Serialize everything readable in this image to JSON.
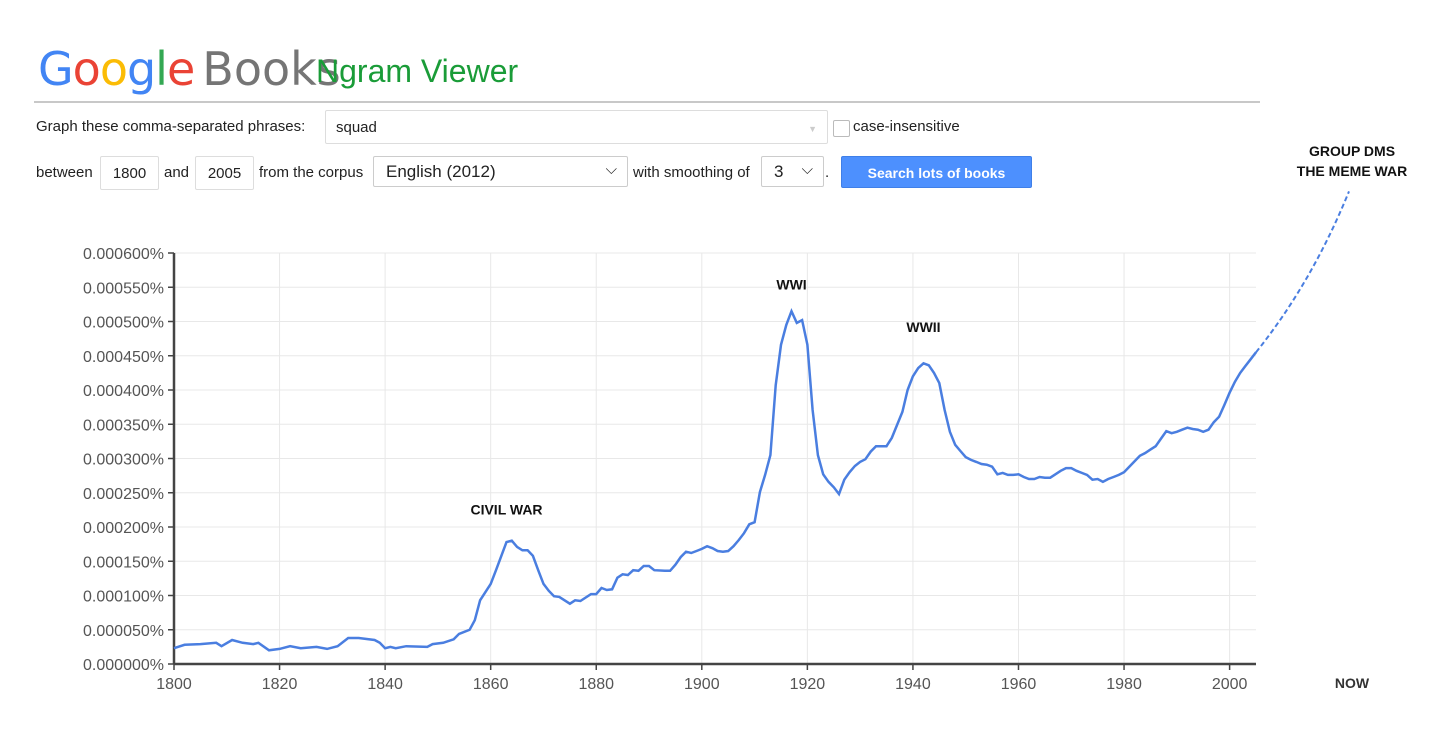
{
  "header": {
    "logo_google": "Google",
    "logo_books": "Books",
    "title": "Ngram Viewer",
    "logo_colors": [
      "#4285f4",
      "#ea4335",
      "#fbbc05",
      "#4285f4",
      "#34a853",
      "#ea4335"
    ],
    "title_color": "#1a9c38"
  },
  "controls": {
    "phrases_label": "Graph these comma-separated phrases:",
    "phrases_value": "squad",
    "case_insensitive_label": "case-insensitive",
    "case_insensitive_checked": false,
    "between_label": "between",
    "start_year": "1800",
    "and_label": "and",
    "end_year": "2005",
    "corpus_label": "from the corpus",
    "corpus_value": "English (2012)",
    "smoothing_label": "with smoothing of",
    "smoothing_value": "3",
    "period": ".",
    "search_button": "Search lots of books",
    "button_color": "#4d90fe"
  },
  "chart_data": {
    "type": "line",
    "y_unit": "percent",
    "xlim": [
      1800,
      2005
    ],
    "ylim": [
      0,
      0.0006
    ],
    "grid": true,
    "x_ticks": [
      "1800",
      "1820",
      "1840",
      "1860",
      "1880",
      "1900",
      "1920",
      "1940",
      "1960",
      "1980",
      "2000"
    ],
    "y_ticks": [
      "0.000000%",
      "0.000050%",
      "0.000100%",
      "0.000150%",
      "0.000200%",
      "0.000250%",
      "0.000300%",
      "0.000350%",
      "0.000400%",
      "0.000450%",
      "0.000500%",
      "0.000550%",
      "0.000600%"
    ],
    "series_color": "#4a7ee0",
    "series": [
      {
        "x": [
          1800,
          1802,
          1805,
          1808,
          1809,
          1811,
          1813,
          1815,
          1816,
          1818,
          1820,
          1822,
          1824,
          1827,
          1829,
          1831,
          1833,
          1835,
          1838,
          1839,
          1840,
          1841,
          1842,
          1844,
          1848,
          1849,
          1851,
          1853,
          1854,
          1856,
          1857,
          1858,
          1860,
          1861,
          1863,
          1864,
          1865,
          1866,
          1867,
          1868,
          1869,
          1870,
          1871,
          1872,
          1873,
          1875,
          1876,
          1877,
          1879,
          1880,
          1881,
          1882,
          1883,
          1884,
          1885,
          1886,
          1887,
          1888,
          1889,
          1890,
          1891,
          1893,
          1894,
          1895,
          1896,
          1897,
          1898,
          1899,
          1900,
          1901,
          1902,
          1903,
          1904,
          1905,
          1906,
          1907,
          1908,
          1909,
          1910,
          1911,
          1912,
          1913,
          1914,
          1915,
          1916,
          1917,
          1918,
          1919,
          1920,
          1921,
          1922,
          1923,
          1924,
          1925,
          1926,
          1927,
          1928,
          1929,
          1930,
          1931,
          1932,
          1933,
          1934,
          1935,
          1936,
          1937,
          1938,
          1939,
          1940,
          1941,
          1942,
          1943,
          1944,
          1945,
          1946,
          1947,
          1948,
          1949,
          1950,
          1951,
          1952,
          1953,
          1954,
          1955,
          1956,
          1957,
          1958,
          1959,
          1960,
          1961,
          1962,
          1963,
          1964,
          1965,
          1966,
          1967,
          1968,
          1969,
          1970,
          1971,
          1972,
          1973,
          1974,
          1975,
          1976,
          1977,
          1978,
          1979,
          1980,
          1981,
          1982,
          1983,
          1984,
          1985,
          1986,
          1987,
          1988,
          1989,
          1990,
          1991,
          1992,
          1993,
          1994,
          1995,
          1996,
          1997,
          1998,
          1999,
          2000,
          2001,
          2002,
          2003,
          2004,
          2005
        ],
        "y": [
          2.3e-05,
          2.8e-05,
          2.9e-05,
          3.1e-05,
          2.6e-05,
          3.5e-05,
          3.1e-05,
          2.9e-05,
          3.1e-05,
          2e-05,
          2.2e-05,
          2.6e-05,
          2.3e-05,
          2.5e-05,
          2.2e-05,
          2.6e-05,
          3.8e-05,
          3.8e-05,
          3.5e-05,
          3.1e-05,
          2.3e-05,
          2.5e-05,
          2.3e-05,
          2.6e-05,
          2.5e-05,
          2.9e-05,
          3.1e-05,
          3.6e-05,
          4.4e-05,
          5e-05,
          6.4e-05,
          9.3e-05,
          0.000117,
          0.000137,
          0.000178,
          0.00018,
          0.000171,
          0.000166,
          0.000166,
          0.000158,
          0.000137,
          0.000117,
          0.000107,
          9.9e-05,
          9.8e-05,
          8.8e-05,
          9.3e-05,
          9.2e-05,
          0.000102,
          0.000102,
          0.000111,
          0.000108,
          0.000109,
          0.000126,
          0.000131,
          0.00013,
          0.000137,
          0.000136,
          0.000143,
          0.000143,
          0.000137,
          0.000136,
          0.000136,
          0.000145,
          0.000156,
          0.000164,
          0.000162,
          0.000165,
          0.000168,
          0.000172,
          0.000169,
          0.000165,
          0.000164,
          0.000165,
          0.000172,
          0.000181,
          0.000191,
          0.000204,
          0.000207,
          0.000251,
          0.000276,
          0.000305,
          0.000407,
          0.000466,
          0.000495,
          0.000515,
          0.000498,
          0.000502,
          0.000466,
          0.000371,
          0.000305,
          0.000277,
          0.000266,
          0.000258,
          0.000248,
          0.000269,
          0.00028,
          0.000289,
          0.000295,
          0.000299,
          0.00031,
          0.000318,
          0.000318,
          0.000318,
          0.00033,
          0.000349,
          0.000368,
          0.0004,
          0.00042,
          0.000432,
          0.000439,
          0.000436,
          0.000425,
          0.00041,
          0.000371,
          0.000339,
          0.00032,
          0.000311,
          0.000302,
          0.000298,
          0.000295,
          0.000292,
          0.000291,
          0.000288,
          0.000277,
          0.000279,
          0.000276,
          0.000276,
          0.000277,
          0.000273,
          0.00027,
          0.00027,
          0.000273,
          0.000272,
          0.000272,
          0.000277,
          0.000282,
          0.000286,
          0.000286,
          0.000282,
          0.000279,
          0.000276,
          0.000269,
          0.00027,
          0.000266,
          0.00027,
          0.000273,
          0.000276,
          0.00028,
          0.000288,
          0.000296,
          0.000304,
          0.000308,
          0.000313,
          0.000318,
          0.000329,
          0.00034,
          0.000337,
          0.000339,
          0.000342,
          0.000345,
          0.000343,
          0.000342,
          0.000339,
          0.000342,
          0.000353,
          0.000361,
          0.000378,
          0.000396,
          0.000412,
          0.000425,
          0.000435,
          0.000445,
          0.000455
        ]
      }
    ],
    "projection": {
      "style": "dashed",
      "end_label": "NOW",
      "end_value": 0.00069
    },
    "annotations": [
      {
        "text": "CIVIL WAR",
        "x": 1863,
        "y": 0.000218
      },
      {
        "text": "WWI",
        "x": 1917,
        "y": 0.000547
      },
      {
        "text": "WWII",
        "x": 1942,
        "y": 0.000485
      },
      {
        "text": "GROUP DMS",
        "x": "NOW",
        "line": 1
      },
      {
        "text": "THE MEME WAR",
        "x": "NOW",
        "line": 2
      }
    ]
  }
}
